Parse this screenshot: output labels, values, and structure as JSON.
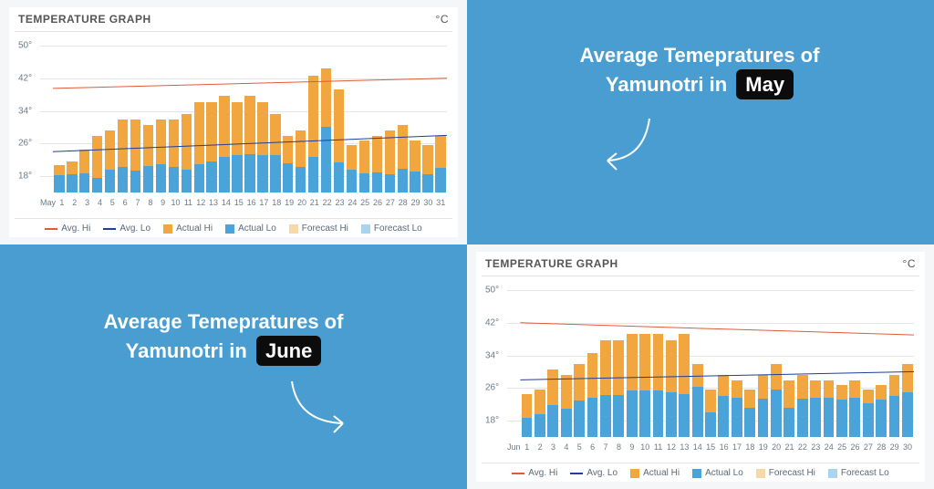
{
  "background_color": "#4a9dd0",
  "captions": {
    "may": {
      "prefix": "Average Temepratures of Yamunotri in",
      "month": "May"
    },
    "june": {
      "prefix": "Average Temepratures of Yamunotri in",
      "month": "June"
    }
  },
  "chart_common": {
    "title": "TEMPERATURE GRAPH",
    "unit": "°C",
    "y_axis": {
      "min": 14,
      "max": 52,
      "ticks": [
        18,
        26,
        34,
        42,
        50
      ],
      "tick_labels": [
        "18°",
        "26°",
        "34°",
        "42°",
        "50°"
      ]
    },
    "legend": [
      {
        "label": "Avg. Hi",
        "type": "line",
        "color": "#e05a3a"
      },
      {
        "label": "Avg. Lo",
        "type": "line",
        "color": "#1e3f9b"
      },
      {
        "label": "Actual Hi",
        "type": "box",
        "color": "#f2a640"
      },
      {
        "label": "Actual Lo",
        "type": "box",
        "color": "#4aa3d9"
      },
      {
        "label": "Forecast Hi",
        "type": "box",
        "color": "#f7d9a8"
      },
      {
        "label": "Forecast Lo",
        "type": "box",
        "color": "#a8d4ee"
      }
    ],
    "bar_gap_ratio": 0.18,
    "grid_color": "#e6e6e6",
    "colors": {
      "hi": "#f2a640",
      "lo": "#4aa3d9",
      "avg_hi": "#e05a3a",
      "avg_lo": "#1e3f9b"
    }
  },
  "may": {
    "month_label": "May",
    "days": [
      1,
      2,
      3,
      4,
      5,
      6,
      7,
      8,
      9,
      10,
      11,
      12,
      13,
      14,
      15,
      16,
      17,
      18,
      19,
      20,
      21,
      22,
      23,
      24,
      25,
      26,
      27,
      28,
      29,
      30,
      31
    ],
    "actual_hi": [
      30,
      31,
      34,
      37,
      38,
      40,
      40,
      39,
      40,
      40,
      41,
      43,
      43,
      44,
      43,
      44,
      43,
      41,
      37,
      38,
      47,
      48,
      45,
      35,
      36,
      37,
      38,
      39,
      36,
      35,
      37
    ],
    "actual_lo": [
      24,
      24,
      23,
      20,
      23,
      23,
      22,
      24,
      24,
      23,
      22,
      23,
      24,
      25,
      26,
      26,
      26,
      27,
      26,
      24,
      24,
      32,
      23,
      24,
      22,
      22,
      21,
      23,
      23,
      22,
      24
    ],
    "avg_hi": {
      "start": 39.5,
      "end": 42
    },
    "avg_lo": {
      "start": 24,
      "end": 28
    }
  },
  "june": {
    "month_label": "Jun",
    "days": [
      1,
      2,
      3,
      4,
      5,
      6,
      7,
      8,
      9,
      10,
      11,
      12,
      13,
      14,
      15,
      16,
      17,
      18,
      19,
      20,
      21,
      22,
      23,
      24,
      25,
      26,
      27,
      28,
      29,
      30
    ],
    "actual_hi": [
      34,
      35,
      39,
      38,
      40,
      42,
      44,
      44,
      45,
      45,
      45,
      44,
      45,
      40,
      35,
      38,
      37,
      35,
      38,
      40,
      37,
      38,
      37,
      37,
      36,
      37,
      35,
      36,
      38,
      40
    ],
    "actual_lo": [
      23,
      24,
      26,
      25,
      27,
      27,
      27,
      27,
      28,
      28,
      28,
      28,
      27,
      32,
      25,
      30,
      30,
      27,
      29,
      31,
      26,
      29,
      30,
      30,
      30,
      30,
      29,
      30,
      30,
      30
    ],
    "avg_hi": {
      "start": 42,
      "end": 39
    },
    "avg_lo": {
      "start": 28,
      "end": 30
    }
  }
}
